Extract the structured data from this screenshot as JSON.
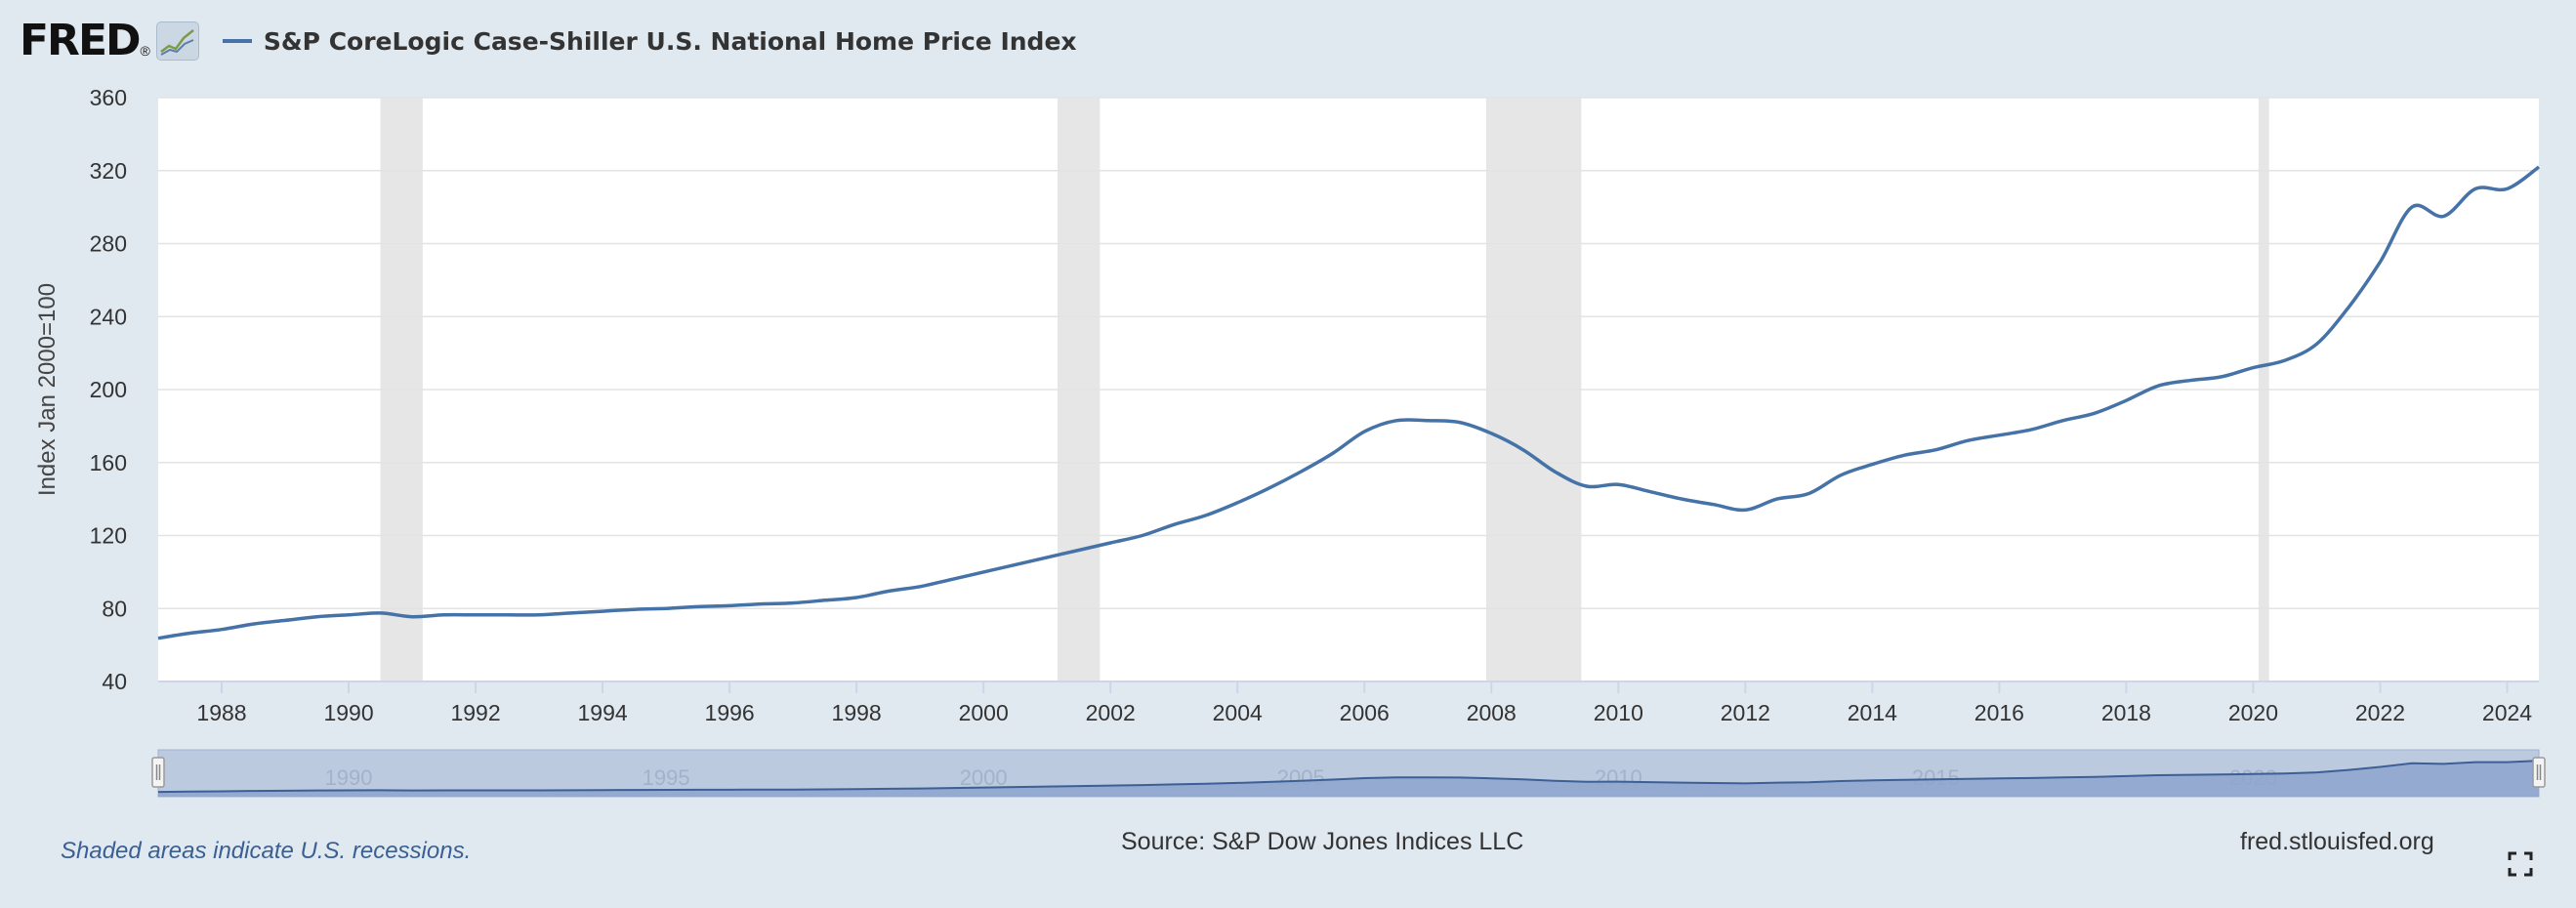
{
  "header": {
    "logo_text": "FRED",
    "logo_registered": "®",
    "logo_icon": "trend-chart-icon",
    "series_name": "S&P CoreLogic Case-Shiller U.S. National Home Price Index",
    "series_color": "#4572a7"
  },
  "footer": {
    "recession_note": "Shaded areas indicate U.S. recessions.",
    "source": "Source: S&P Dow Jones Indices LLC",
    "site": "fred.stlouisfed.org",
    "fullscreen_icon": "fullscreen-expand-icon"
  },
  "chart_data": {
    "type": "line",
    "title": "",
    "xlabel": "",
    "ylabel": "Index Jan 2000=100",
    "ylim": [
      40,
      360
    ],
    "yticks": [
      40,
      80,
      120,
      160,
      200,
      240,
      280,
      320,
      360
    ],
    "xlim": [
      "1987-01",
      "2024-07"
    ],
    "xticks": [
      "1988",
      "1990",
      "1992",
      "1994",
      "1996",
      "1998",
      "2000",
      "2002",
      "2004",
      "2006",
      "2008",
      "2010",
      "2012",
      "2014",
      "2016",
      "2018",
      "2020",
      "2022",
      "2024"
    ],
    "grid": true,
    "legend": "top-left",
    "series_color": "#4572a7",
    "recession_color": "#e6e6e6",
    "recessions": [
      [
        "1990-07",
        "1991-03"
      ],
      [
        "2001-03",
        "2001-11"
      ],
      [
        "2007-12",
        "2009-06"
      ],
      [
        "2020-02",
        "2020-04"
      ]
    ],
    "series": [
      {
        "name": "S&P CoreLogic Case-Shiller U.S. National Home Price Index",
        "x": [
          "1987-01",
          "1987-07",
          "1988-01",
          "1988-07",
          "1989-01",
          "1989-07",
          "1990-01",
          "1990-07",
          "1991-01",
          "1991-07",
          "1992-01",
          "1992-07",
          "1993-01",
          "1993-07",
          "1994-01",
          "1994-07",
          "1995-01",
          "1995-07",
          "1996-01",
          "1996-07",
          "1997-01",
          "1997-07",
          "1998-01",
          "1998-07",
          "1999-01",
          "1999-07",
          "2000-01",
          "2000-07",
          "2001-01",
          "2001-07",
          "2002-01",
          "2002-07",
          "2003-01",
          "2003-07",
          "2004-01",
          "2004-07",
          "2005-01",
          "2005-07",
          "2006-01",
          "2006-07",
          "2007-01",
          "2007-07",
          "2008-01",
          "2008-07",
          "2009-01",
          "2009-07",
          "2010-01",
          "2010-07",
          "2011-01",
          "2011-07",
          "2012-01",
          "2012-07",
          "2013-01",
          "2013-07",
          "2014-01",
          "2014-07",
          "2015-01",
          "2015-07",
          "2016-01",
          "2016-07",
          "2017-01",
          "2017-07",
          "2018-01",
          "2018-07",
          "2019-01",
          "2019-07",
          "2020-01",
          "2020-07",
          "2021-01",
          "2021-07",
          "2022-01",
          "2022-07",
          "2023-01",
          "2023-07",
          "2024-01",
          "2024-07"
        ],
        "values": [
          63.7,
          66.5,
          68.5,
          71.5,
          73.5,
          75.5,
          76.5,
          77.5,
          75.5,
          76.5,
          76.5,
          76.5,
          76.5,
          77.5,
          78.5,
          79.5,
          80,
          81,
          81.5,
          82.5,
          83,
          84.5,
          86,
          89.5,
          92,
          96,
          100,
          104,
          108,
          112,
          116,
          120,
          126,
          131,
          138,
          146,
          155,
          165,
          177,
          183,
          183,
          182,
          176,
          167,
          155,
          147,
          148,
          144,
          140,
          137,
          134,
          140,
          143,
          153,
          159,
          164,
          167,
          172,
          175,
          178,
          183,
          187,
          194,
          202,
          205,
          207,
          212,
          216,
          225,
          245,
          270,
          300,
          295,
          310,
          310,
          322
        ]
      }
    ]
  },
  "navigator": {
    "labels": [
      "1990",
      "1995",
      "2000",
      "2005",
      "2010",
      "2015",
      "2020"
    ]
  }
}
